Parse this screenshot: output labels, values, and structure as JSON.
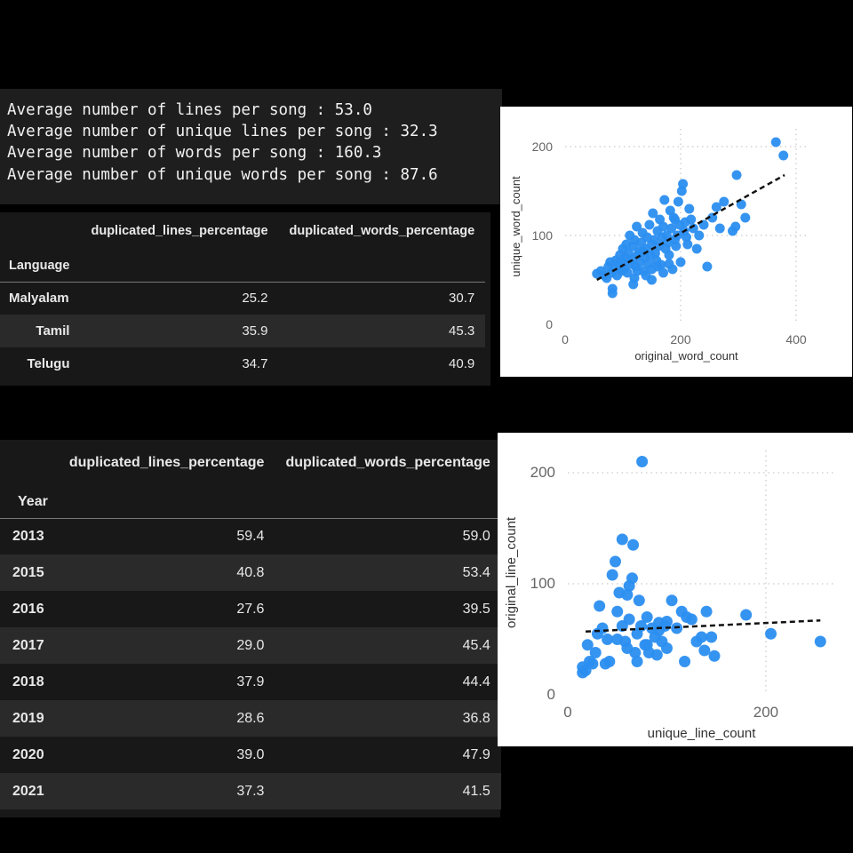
{
  "stats": {
    "lines": [
      "Average number of lines per song : 53.0",
      "Average number of unique lines per song : 32.3",
      "Average number of words per song : 160.3",
      "Average number of unique words per song : 87.6"
    ]
  },
  "language_table": {
    "columns": [
      "duplicated_lines_percentage",
      "duplicated_words_percentage"
    ],
    "index_name": "Language",
    "rows": [
      {
        "label": "Malyalam",
        "values": [
          "25.2",
          "30.7"
        ]
      },
      {
        "label": "Tamil",
        "values": [
          "35.9",
          "45.3"
        ]
      },
      {
        "label": "Telugu",
        "values": [
          "34.7",
          "40.9"
        ]
      }
    ]
  },
  "year_table": {
    "columns": [
      "duplicated_lines_percentage",
      "duplicated_words_percentage"
    ],
    "index_name": "Year",
    "rows": [
      {
        "label": "2013",
        "values": [
          "59.4",
          "59.0"
        ]
      },
      {
        "label": "2015",
        "values": [
          "40.8",
          "53.4"
        ]
      },
      {
        "label": "2016",
        "values": [
          "27.6",
          "39.5"
        ]
      },
      {
        "label": "2017",
        "values": [
          "29.0",
          "45.4"
        ]
      },
      {
        "label": "2018",
        "values": [
          "37.9",
          "44.4"
        ]
      },
      {
        "label": "2019",
        "values": [
          "28.6",
          "36.8"
        ]
      },
      {
        "label": "2020",
        "values": [
          "39.0",
          "47.9"
        ]
      },
      {
        "label": "2021",
        "values": [
          "37.3",
          "41.5"
        ]
      }
    ]
  },
  "chart_data": [
    {
      "type": "scatter",
      "xlabel": "original_word_count",
      "ylabel": "unique_word_count",
      "xlim": [
        0,
        420
      ],
      "ylim": [
        0,
        220
      ],
      "xticks": [
        0,
        200,
        400
      ],
      "yticks": [
        0,
        100,
        200
      ],
      "grid": true,
      "color": "#2b8ef0",
      "trend": {
        "x1": 55,
        "y1": 50,
        "x2": 380,
        "y2": 168
      },
      "points": [
        [
          55,
          57
        ],
        [
          62,
          60
        ],
        [
          68,
          55
        ],
        [
          72,
          52
        ],
        [
          75,
          65
        ],
        [
          78,
          70
        ],
        [
          80,
          58
        ],
        [
          82,
          40
        ],
        [
          82,
          35
        ],
        [
          85,
          62
        ],
        [
          88,
          72
        ],
        [
          90,
          55
        ],
        [
          92,
          68
        ],
        [
          95,
          78
        ],
        [
          98,
          60
        ],
        [
          100,
          85
        ],
        [
          100,
          70
        ],
        [
          102,
          62
        ],
        [
          104,
          75
        ],
        [
          106,
          90
        ],
        [
          108,
          58
        ],
        [
          110,
          80
        ],
        [
          112,
          100
        ],
        [
          114,
          68
        ],
        [
          116,
          73
        ],
        [
          118,
          88
        ],
        [
          120,
          95
        ],
        [
          120,
          52
        ],
        [
          122,
          65
        ],
        [
          124,
          110
        ],
        [
          126,
          78
        ],
        [
          128,
          82
        ],
        [
          130,
          70
        ],
        [
          132,
          92
        ],
        [
          134,
          103
        ],
        [
          136,
          60
        ],
        [
          138,
          75
        ],
        [
          140,
          85
        ],
        [
          142,
          98
        ],
        [
          144,
          68
        ],
        [
          146,
          112
        ],
        [
          148,
          78
        ],
        [
          150,
          62
        ],
        [
          150,
          90
        ],
        [
          152,
          125
        ],
        [
          154,
          95
        ],
        [
          156,
          80
        ],
        [
          158,
          72
        ],
        [
          160,
          105
        ],
        [
          162,
          88
        ],
        [
          164,
          118
        ],
        [
          166,
          67
        ],
        [
          168,
          98
        ],
        [
          170,
          110
        ],
        [
          172,
          140
        ],
        [
          174,
          85
        ],
        [
          176,
          100
        ],
        [
          178,
          92
        ],
        [
          180,
          78
        ],
        [
          182,
          128
        ],
        [
          184,
          108
        ],
        [
          186,
          62
        ],
        [
          188,
          120
        ],
        [
          190,
          95
        ],
        [
          192,
          88
        ],
        [
          194,
          100
        ],
        [
          196,
          138
        ],
        [
          198,
          112
        ],
        [
          200,
          70
        ],
        [
          202,
          150
        ],
        [
          204,
          158
        ],
        [
          206,
          105
        ],
        [
          208,
          115
        ],
        [
          210,
          98
        ],
        [
          212,
          90
        ],
        [
          215,
          130
        ],
        [
          218,
          118
        ],
        [
          222,
          108
        ],
        [
          228,
          85
        ],
        [
          232,
          100
        ],
        [
          240,
          112
        ],
        [
          246,
          65
        ],
        [
          255,
          120
        ],
        [
          262,
          132
        ],
        [
          268,
          108
        ],
        [
          275,
          138
        ],
        [
          290,
          105
        ],
        [
          295,
          110
        ],
        [
          297,
          168
        ],
        [
          305,
          135
        ],
        [
          312,
          120
        ],
        [
          365,
          205
        ],
        [
          378,
          190
        ],
        [
          140,
          55
        ],
        [
          125,
          60
        ],
        [
          118,
          45
        ],
        [
          135,
          82
        ],
        [
          160,
          65
        ],
        [
          170,
          58
        ],
        [
          150,
          50
        ],
        [
          180,
          68
        ],
        [
          190,
          118
        ]
      ]
    },
    {
      "type": "scatter",
      "xlabel": "unique_line_count",
      "ylabel": "original_line_count",
      "xlim": [
        0,
        270
      ],
      "ylim": [
        0,
        220
      ],
      "xticks": [
        0,
        200
      ],
      "yticks": [
        0,
        100,
        200
      ],
      "grid": true,
      "color": "#2b8ef0",
      "trend": {
        "x1": 18,
        "y1": 57,
        "x2": 255,
        "y2": 67
      },
      "points": [
        [
          15,
          20
        ],
        [
          15,
          25
        ],
        [
          18,
          22
        ],
        [
          20,
          45
        ],
        [
          22,
          30
        ],
        [
          25,
          28
        ],
        [
          28,
          38
        ],
        [
          30,
          55
        ],
        [
          32,
          80
        ],
        [
          35,
          60
        ],
        [
          38,
          28
        ],
        [
          40,
          50
        ],
        [
          42,
          30
        ],
        [
          45,
          108
        ],
        [
          48,
          120
        ],
        [
          50,
          75
        ],
        [
          52,
          92
        ],
        [
          55,
          140
        ],
        [
          55,
          62
        ],
        [
          58,
          48
        ],
        [
          60,
          90
        ],
        [
          62,
          98
        ],
        [
          65,
          105
        ],
        [
          66,
          135
        ],
        [
          68,
          38
        ],
        [
          70,
          55
        ],
        [
          72,
          85
        ],
        [
          74,
          62
        ],
        [
          75,
          210
        ],
        [
          78,
          45
        ],
        [
          80,
          70
        ],
        [
          82,
          38
        ],
        [
          85,
          60
        ],
        [
          88,
          52
        ],
        [
          90,
          36
        ],
        [
          92,
          65
        ],
        [
          95,
          48
        ],
        [
          98,
          62
        ],
        [
          100,
          42
        ],
        [
          105,
          85
        ],
        [
          110,
          60
        ],
        [
          115,
          75
        ],
        [
          118,
          30
        ],
        [
          120,
          70
        ],
        [
          125,
          68
        ],
        [
          130,
          48
        ],
        [
          135,
          52
        ],
        [
          138,
          40
        ],
        [
          140,
          75
        ],
        [
          145,
          52
        ],
        [
          148,
          35
        ],
        [
          180,
          72
        ],
        [
          205,
          55
        ],
        [
          255,
          48
        ],
        [
          50,
          50
        ],
        [
          60,
          42
        ],
        [
          62,
          68
        ],
        [
          70,
          30
        ],
        [
          80,
          45
        ],
        [
          92,
          58
        ],
        [
          100,
          66
        ]
      ]
    }
  ]
}
